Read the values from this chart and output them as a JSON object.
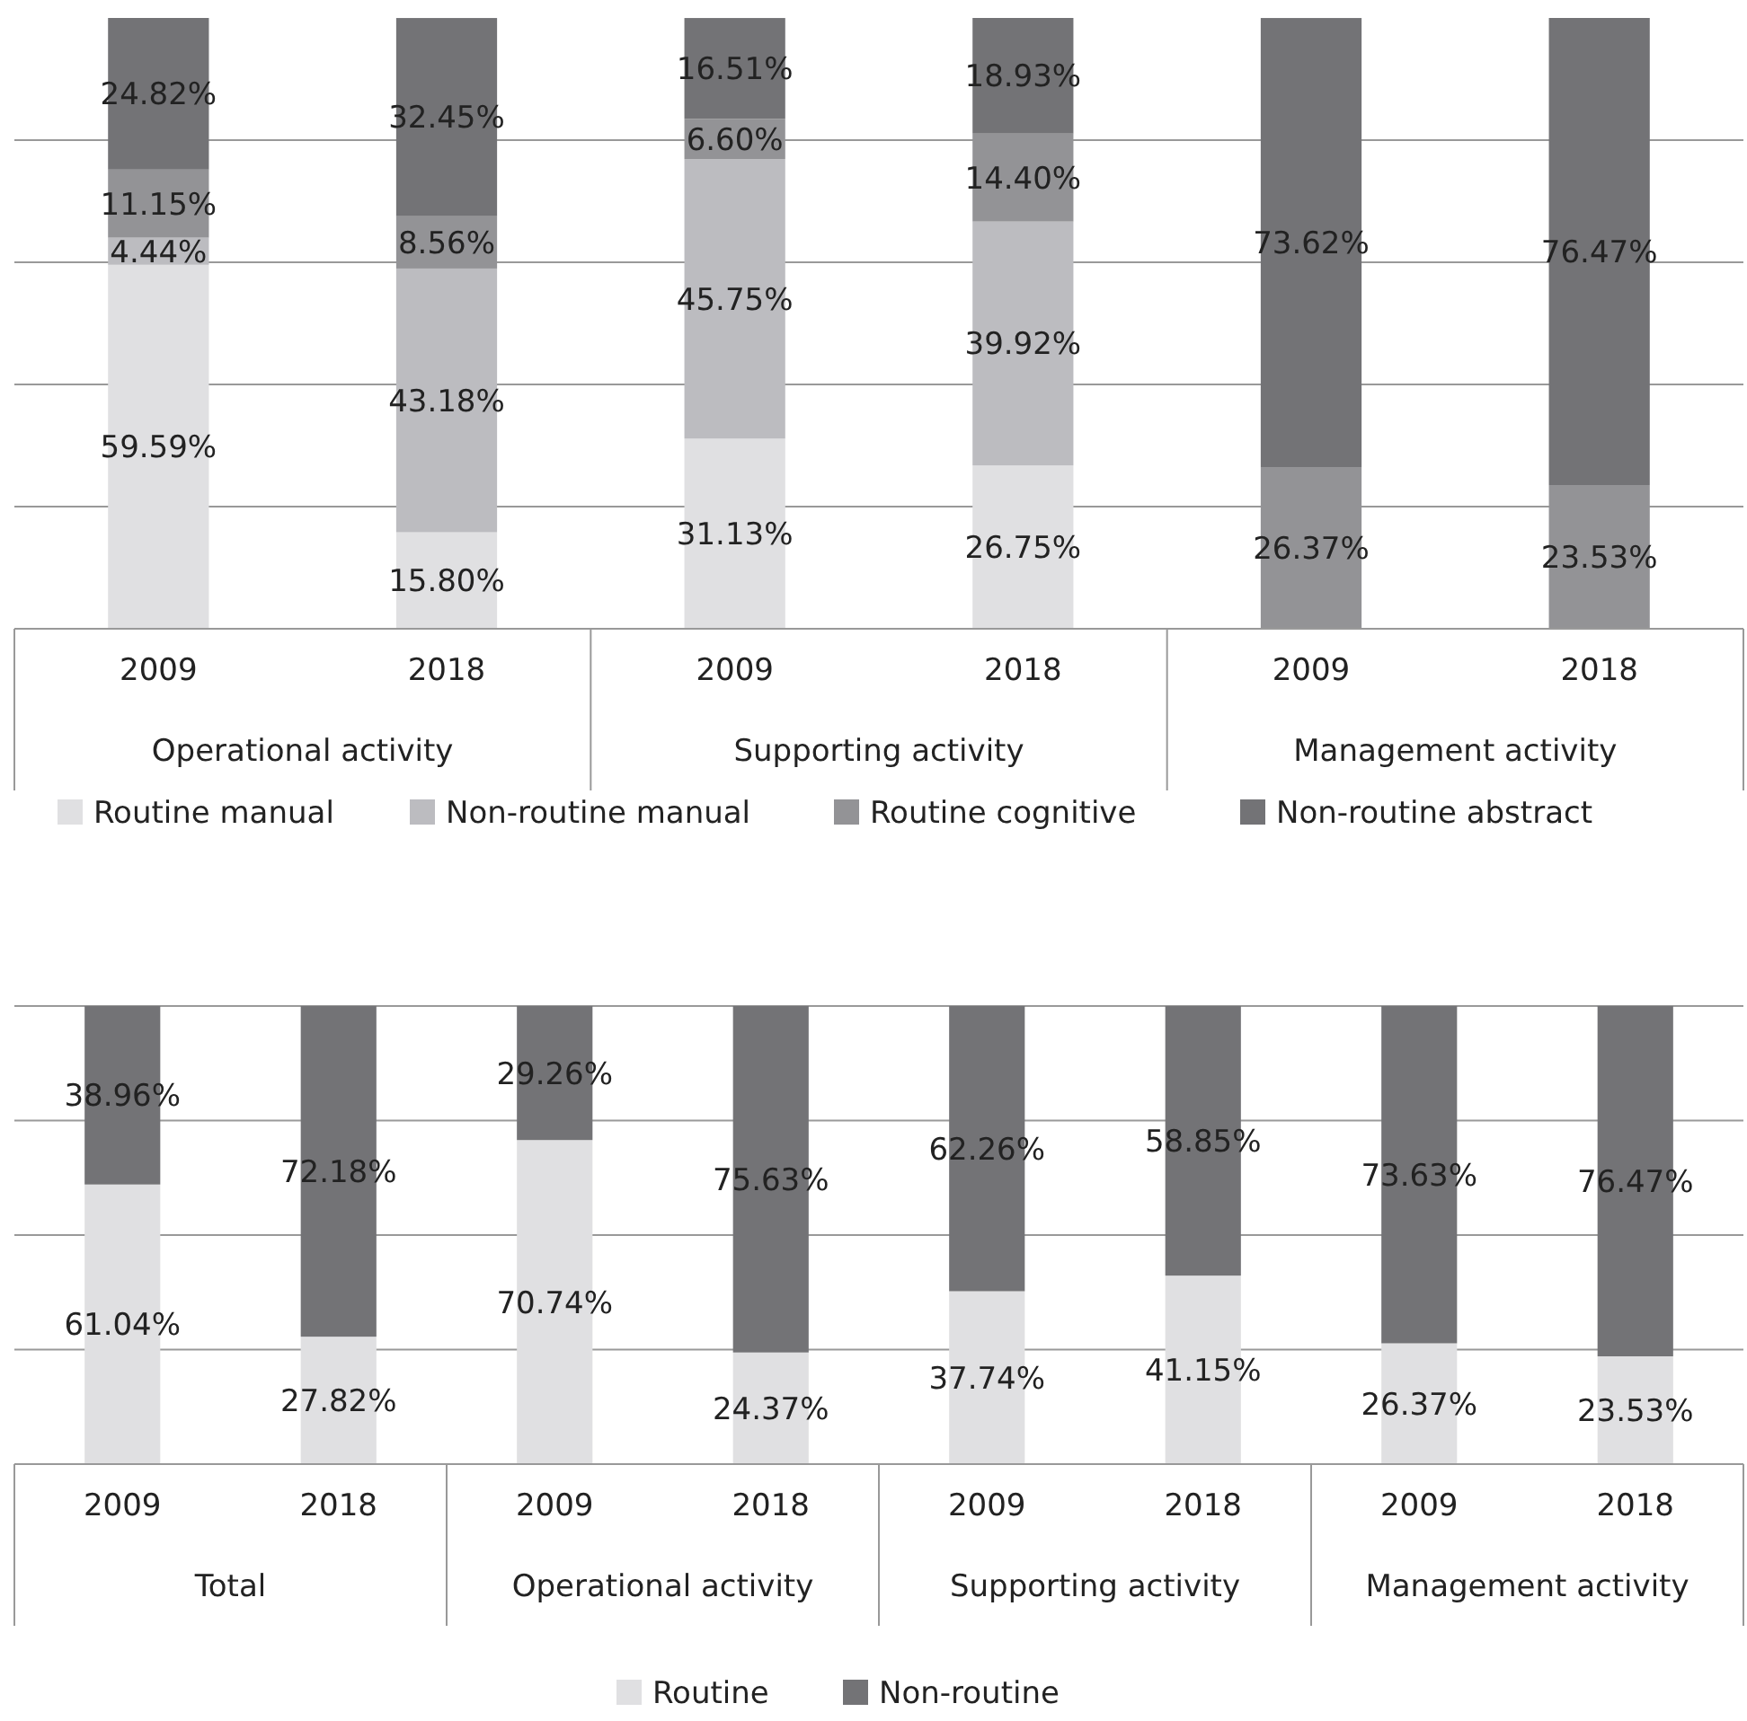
{
  "chart_data": [
    {
      "type": "bar",
      "stacked": true,
      "categories": [
        "2009",
        "2018",
        "2009",
        "2018",
        "2009",
        "2018"
      ],
      "annotations": [
        "Operational activity",
        "Supporting activity",
        "Management activity"
      ],
      "ylim": [
        0,
        100
      ],
      "yticks": [
        {
          "value": 0,
          "label": null
        },
        {
          "value": 20,
          "label": null
        },
        {
          "value": 40,
          "label": null
        },
        {
          "value": 60,
          "label": null
        },
        {
          "value": 80,
          "label": null
        }
      ],
      "grid": "y",
      "tick_labels": "x",
      "legend": "bottom",
      "series": [
        {
          "name": "Routine manual",
          "color": "#e0e0e2",
          "values": [
            59.59,
            15.8,
            31.13,
            26.75,
            null,
            null
          ],
          "value_labels": [
            "59.59%",
            "15.80%",
            "31.13%",
            "26.75%",
            null,
            null
          ]
        },
        {
          "name": "Non-routine manual",
          "color": "#bcbcc0",
          "values": [
            4.44,
            43.18,
            45.75,
            39.92,
            null,
            null
          ],
          "value_labels": [
            "4.44%",
            "43.18%",
            "45.75%",
            "39.92%",
            null,
            null
          ]
        },
        {
          "name": "Routine cognitive",
          "color": "#939396",
          "values": [
            11.15,
            8.56,
            6.6,
            14.4,
            26.37,
            23.53
          ],
          "value_labels": [
            "11.15%",
            "8.56%",
            "6.60%",
            "14.40%",
            "26.37%",
            "23.53%"
          ]
        },
        {
          "name": "Non-routine abstract",
          "color": "#737376",
          "values": [
            24.82,
            32.45,
            16.51,
            18.93,
            73.62,
            76.47
          ],
          "value_labels": [
            "24.82%",
            "32.45%",
            "16.51%",
            "18.93%",
            "73.62%",
            "76.47%"
          ]
        }
      ]
    },
    {
      "type": "bar",
      "stacked": true,
      "categories": [
        "2009",
        "2018",
        "2009",
        "2018",
        "2009",
        "2018",
        "2009",
        "2018"
      ],
      "annotations": [
        "Total",
        "Operational activity",
        "Supporting activity",
        "Management activity"
      ],
      "ylim": [
        0,
        100
      ],
      "yticks": [
        {
          "value": 0,
          "label": null
        },
        {
          "value": 25,
          "label": null
        },
        {
          "value": 50,
          "label": null
        },
        {
          "value": 75,
          "label": null
        },
        {
          "value": 100,
          "label": null
        }
      ],
      "grid": "y",
      "tick_labels": "x",
      "legend": "bottom",
      "series": [
        {
          "name": "Routine",
          "color": "#e0e0e2",
          "values": [
            61.04,
            27.82,
            70.74,
            24.37,
            37.74,
            41.15,
            26.37,
            23.53
          ],
          "value_labels": [
            "61.04%",
            "27.82%",
            "70.74%",
            "24.37%",
            "37.74%",
            "41.15%",
            "26.37%",
            "23.53%"
          ]
        },
        {
          "name": "Non-routine",
          "color": "#737376",
          "values": [
            38.96,
            72.18,
            29.26,
            75.63,
            62.26,
            58.85,
            73.63,
            76.47
          ],
          "value_labels": [
            "38.96%",
            "72.18%",
            "29.26%",
            "75.63%",
            "62.26%",
            "58.85%",
            "73.63%",
            "76.47%"
          ]
        }
      ]
    }
  ]
}
